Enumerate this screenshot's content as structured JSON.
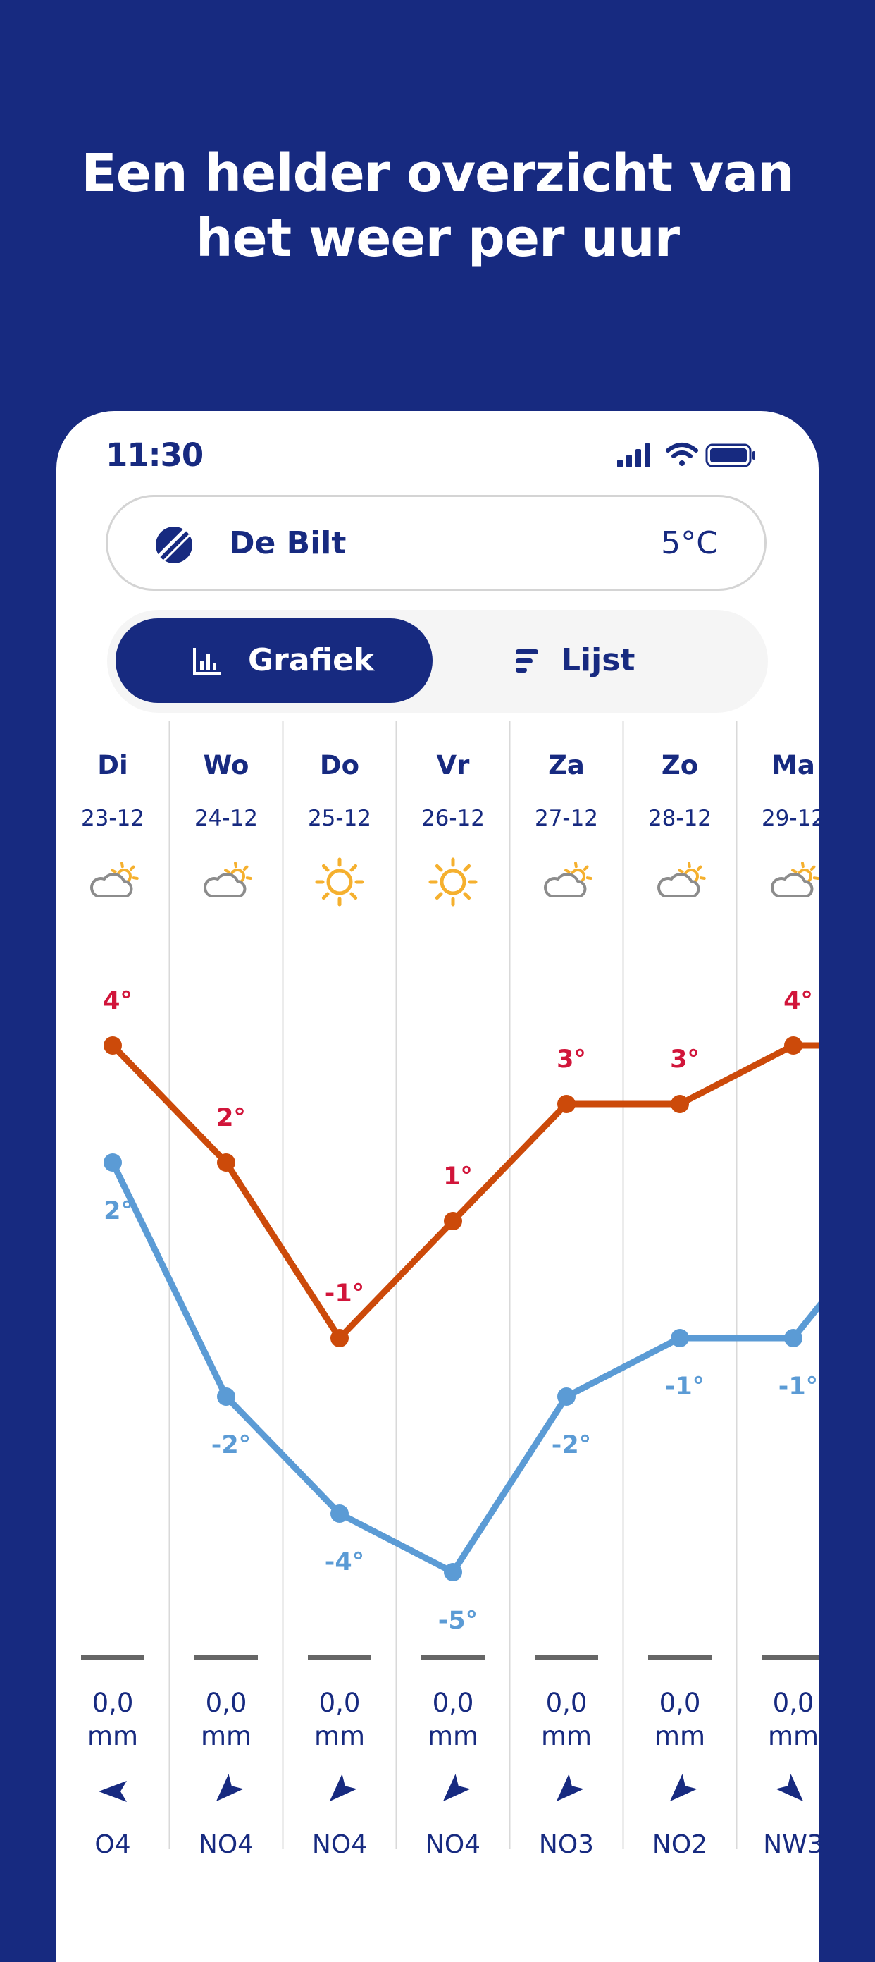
{
  "headline": {
    "line1": "Een helder overzicht van",
    "line2": "het weer per uur"
  },
  "status_bar": {
    "time": "11:30",
    "icons": [
      "cellular-signal-icon",
      "wifi-icon",
      "battery-icon"
    ]
  },
  "location": {
    "name": "De Bilt",
    "temperature": "5°C",
    "icon": "weather-logo-icon"
  },
  "view_toggle": {
    "graph_label": "Grafiek",
    "list_label": "Lijst",
    "selected": "Grafiek"
  },
  "colors": {
    "brand_navy": "#172a80",
    "max_line": "#cc4a0a",
    "max_label": "#d1153a",
    "min_line": "#5b9bd5",
    "sun": "#f5b02e"
  },
  "chart_data": {
    "type": "line",
    "categories": [
      "Di",
      "Wo",
      "Do",
      "Vr",
      "Za",
      "Zo",
      "Ma"
    ],
    "dates": [
      "23-12",
      "24-12",
      "25-12",
      "26-12",
      "27-12",
      "28-12",
      "29-12"
    ],
    "icons": [
      "partly-cloudy-icon",
      "partly-cloudy-icon",
      "sun-icon",
      "sun-icon",
      "partly-cloudy-icon",
      "partly-cloudy-icon",
      "partly-cloudy-icon"
    ],
    "series": [
      {
        "key": "max",
        "values": [
          4,
          2,
          -1,
          1,
          3,
          3,
          4
        ],
        "labels": [
          "4°",
          "2°",
          "-1°",
          "1°",
          "3°",
          "3°",
          "4°"
        ]
      },
      {
        "key": "min",
        "values": [
          2,
          -2,
          -4,
          -5,
          -2,
          -1,
          -1
        ],
        "labels": [
          "2°",
          "-2°",
          "-4°",
          "-5°",
          "-2°",
          "-1°",
          "-1°"
        ]
      }
    ],
    "precip_value": [
      "0,0",
      "0,0",
      "0,0",
      "0,0",
      "0,0",
      "0,0",
      "0,0"
    ],
    "precip_unit": "mm",
    "wind": [
      "O4",
      "NO4",
      "NO4",
      "NO4",
      "NO3",
      "NO2",
      "NW3"
    ],
    "wind_direction_deg": [
      90,
      45,
      45,
      45,
      45,
      45,
      315
    ]
  }
}
